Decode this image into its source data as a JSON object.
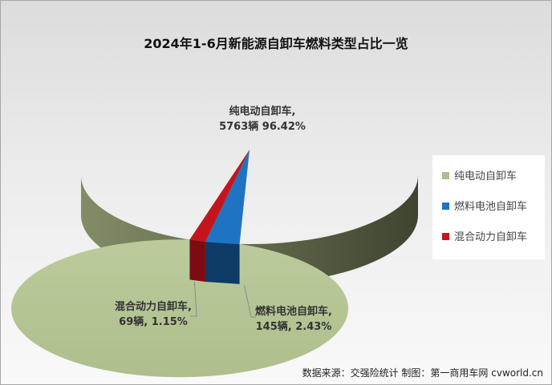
{
  "colors": {
    "pure_electric": "#aebe8c",
    "fuel_cell": "#1f74c2",
    "hybrid": "#c4151d"
  },
  "chart_data": {
    "type": "pie",
    "title": "2024年1-6月新能源自卸车燃料类型占比一览",
    "slices": [
      {
        "name": "纯电动自卸车",
        "units": 5763,
        "percent": 96.42,
        "label_name": "纯电动自卸车,",
        "label_value": "5763辆 96.42%"
      },
      {
        "name": "燃料电池自卸车",
        "units": 145,
        "percent": 2.43,
        "label_name": "燃料电池自卸车,",
        "label_value": "145辆, 2.43%"
      },
      {
        "name": "混合动力自卸车",
        "units": 69,
        "percent": 1.15,
        "label_name": "混合动力自卸车,",
        "label_value": "69辆, 1.15%"
      }
    ],
    "legend": [
      "纯电动自卸车",
      "燃料电池自卸车",
      "混合动力自卸车"
    ],
    "legend_position": "right"
  },
  "source_text": "数据来源：交强险统计  制图：第一商用车网 cvworld.cn"
}
